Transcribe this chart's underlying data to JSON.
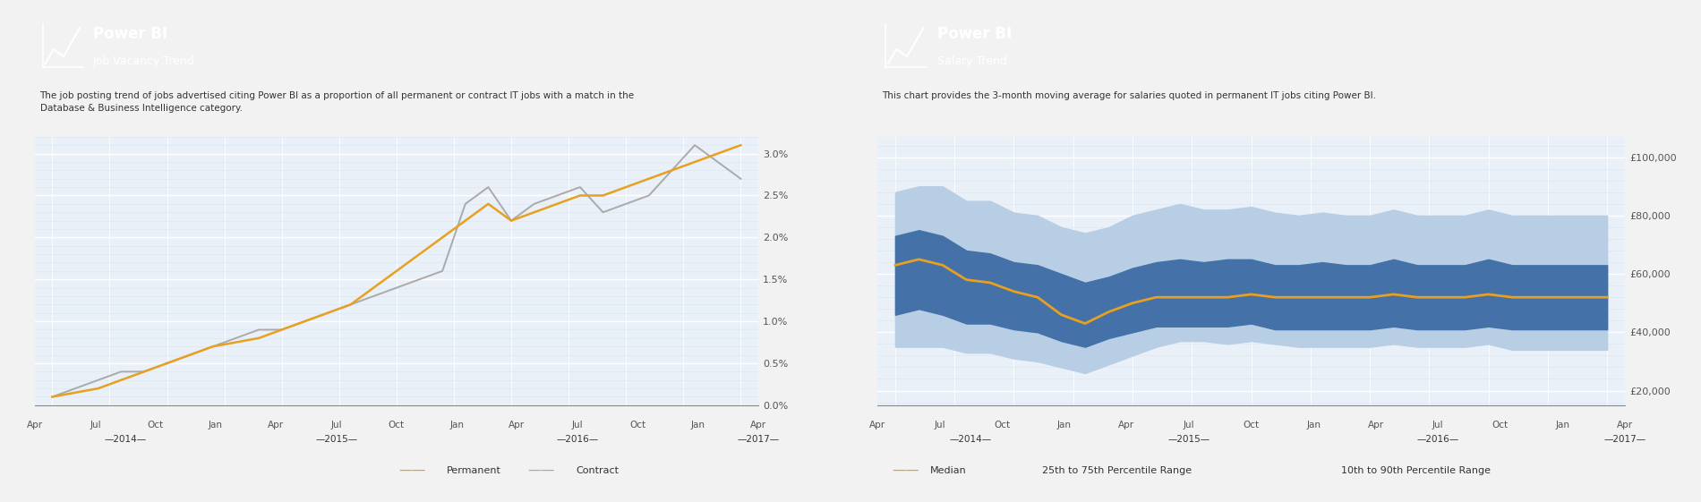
{
  "chart1": {
    "title": "Power BI",
    "subtitle": "Job Vacancy Trend",
    "description": "The job posting trend of jobs advertised citing Power BI as a proportion of all permanent or contract IT jobs with a match in the\nDatabase & Business Intelligence category.",
    "x_labels": [
      "Apr",
      "Jul",
      "Oct",
      "Jan",
      "Apr",
      "Jul",
      "Oct",
      "Jan",
      "Apr",
      "Jul",
      "Oct",
      "Jan",
      "Apr"
    ],
    "year_labels": [
      "2014",
      "2015",
      "2016",
      "2017"
    ],
    "ylim": [
      0.0,
      0.032
    ],
    "yticks": [
      0.0,
      0.005,
      0.01,
      0.015,
      0.02,
      0.025,
      0.03
    ],
    "ytick_labels": [
      "0.0%",
      "0.5%",
      "1.0%",
      "1.5%",
      "2.0%",
      "2.5%",
      "3.0%"
    ],
    "permanent": [
      0.001,
      0.0015,
      0.002,
      0.003,
      0.004,
      0.005,
      0.006,
      0.007,
      0.0075,
      0.008,
      0.009,
      0.01,
      0.011,
      0.012,
      0.014,
      0.016,
      0.018,
      0.02,
      0.022,
      0.024,
      0.022,
      0.023,
      0.024,
      0.025,
      0.025,
      0.026,
      0.027,
      0.028,
      0.029,
      0.03,
      0.031
    ],
    "contract": [
      0.001,
      0.002,
      0.003,
      0.004,
      0.004,
      0.005,
      0.006,
      0.007,
      0.008,
      0.009,
      0.009,
      0.01,
      0.011,
      0.012,
      0.013,
      0.014,
      0.015,
      0.016,
      0.024,
      0.026,
      0.022,
      0.024,
      0.025,
      0.026,
      0.023,
      0.024,
      0.025,
      0.028,
      0.031,
      0.029,
      0.027
    ],
    "permanent_color": "#E8A020",
    "contract_color": "#AAAAAA",
    "header_bg": "#5B9BD5",
    "plot_bg": "#EAF0F8",
    "grid_major_color": "#FFFFFF",
    "grid_minor_color": "#DCE8F5"
  },
  "chart2": {
    "title": "Power BI",
    "subtitle": "Salary Trend",
    "description": "This chart provides the 3-month moving average for salaries quoted in permanent IT jobs citing Power BI.",
    "x_labels": [
      "Apr",
      "Jul",
      "Oct",
      "Jan",
      "Apr",
      "Jul",
      "Oct",
      "Jan",
      "Apr",
      "Jul",
      "Oct",
      "Jan",
      "Apr"
    ],
    "year_labels": [
      "2014",
      "2015",
      "2016",
      "2017"
    ],
    "ylim": [
      15000,
      107000
    ],
    "yticks": [
      20000,
      40000,
      60000,
      80000,
      100000
    ],
    "ytick_labels": [
      "£20,000",
      "£40,000",
      "£60,000",
      "£80,000",
      "£100,000"
    ],
    "median": [
      63000,
      65000,
      63000,
      58000,
      57000,
      54000,
      52000,
      46000,
      43000,
      47000,
      50000,
      52000,
      52000,
      52000,
      52000,
      53000,
      52000,
      52000,
      52000,
      52000,
      52000,
      53000,
      52000,
      52000,
      52000,
      53000,
      52000,
      52000,
      52000,
      52000,
      52000
    ],
    "p25": [
      46000,
      48000,
      46000,
      43000,
      43000,
      41000,
      40000,
      37000,
      35000,
      38000,
      40000,
      42000,
      42000,
      42000,
      42000,
      43000,
      41000,
      41000,
      41000,
      41000,
      41000,
      42000,
      41000,
      41000,
      41000,
      42000,
      41000,
      41000,
      41000,
      41000,
      41000
    ],
    "p75": [
      73000,
      75000,
      73000,
      68000,
      67000,
      64000,
      63000,
      60000,
      57000,
      59000,
      62000,
      64000,
      65000,
      64000,
      65000,
      65000,
      63000,
      63000,
      64000,
      63000,
      63000,
      65000,
      63000,
      63000,
      63000,
      65000,
      63000,
      63000,
      63000,
      63000,
      63000
    ],
    "p10": [
      35000,
      35000,
      35000,
      33000,
      33000,
      31000,
      30000,
      28000,
      26000,
      29000,
      32000,
      35000,
      37000,
      37000,
      36000,
      37000,
      36000,
      35000,
      35000,
      35000,
      35000,
      36000,
      35000,
      35000,
      35000,
      36000,
      34000,
      34000,
      34000,
      34000,
      34000
    ],
    "p90": [
      88000,
      90000,
      90000,
      85000,
      85000,
      81000,
      80000,
      76000,
      74000,
      76000,
      80000,
      82000,
      84000,
      82000,
      82000,
      83000,
      81000,
      80000,
      81000,
      80000,
      80000,
      82000,
      80000,
      80000,
      80000,
      82000,
      80000,
      80000,
      80000,
      80000,
      80000
    ],
    "median_color": "#E8A020",
    "band25_75_color": "#4472A8",
    "band10_90_color": "#B8CEE4",
    "header_bg": "#5B9BD5",
    "plot_bg": "#EAF0F8",
    "grid_major_color": "#FFFFFF",
    "grid_minor_color": "#DCE8F5"
  },
  "bg_color": "#F2F2F2",
  "panel_bg": "#FFFFFF",
  "panel_border": "#D0D0D0",
  "text_dark": "#333333",
  "text_mid": "#555555",
  "axis_line_color": "#888888"
}
